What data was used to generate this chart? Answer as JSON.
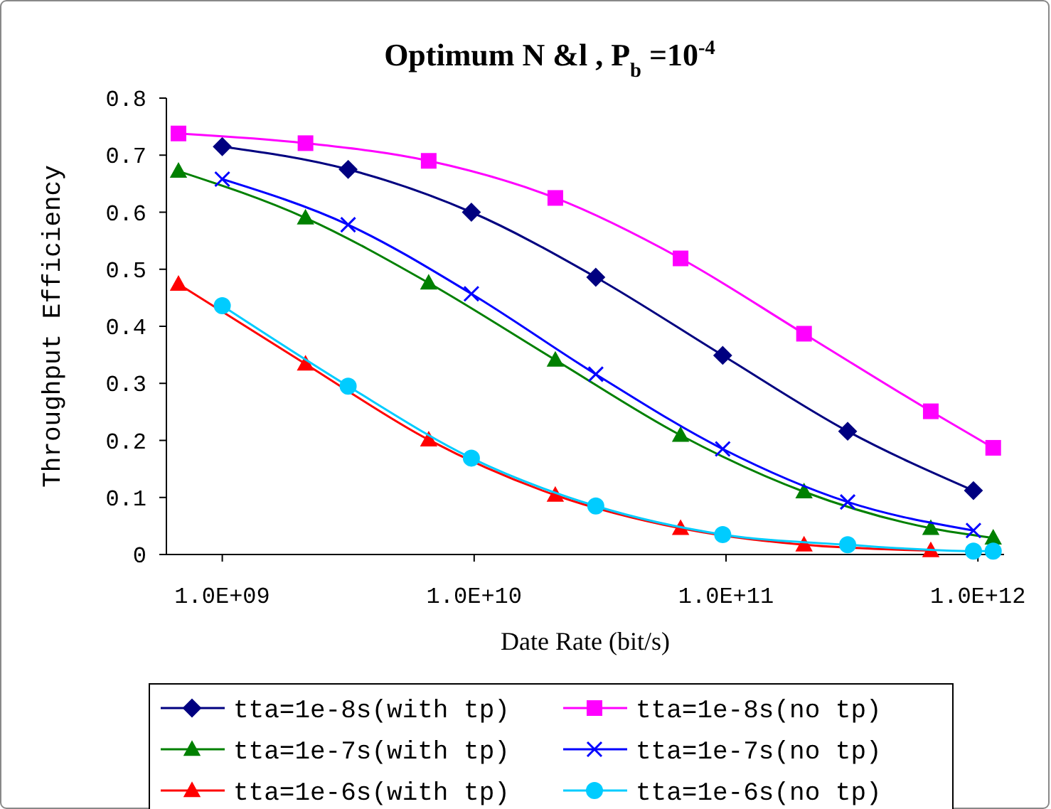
{
  "chart_data": {
    "type": "line",
    "title": "Optimum N &l , P$_{b}$ =10$^{-4}$",
    "xlabel": "Date Rate (bit/s)",
    "ylabel": "Throughput Efficiency",
    "log": "x",
    "xlim": [
      600000000.0,
      1270000000000.0
    ],
    "xticks": [
      {
        "value": 1000000000.0,
        "label": "1.0E+09"
      },
      {
        "value": 10000000000.0,
        "label": "1.0E+10"
      },
      {
        "value": 100000000000.0,
        "label": "1.0E+11"
      },
      {
        "value": 1000000000000.0,
        "label": "1.0E+12"
      }
    ],
    "ylim": [
      0,
      0.8
    ],
    "yticks": [
      0,
      0.1,
      0.2,
      0.3,
      0.4,
      0.5,
      0.6,
      0.7,
      0.8
    ],
    "grid": false,
    "legend": "bottom",
    "series": [
      {
        "name": "tta=1e-8s(with tp)",
        "color": "#000080",
        "marker": "diamond",
        "x": [
          1000000000.0,
          3160000000.0,
          9750000000.0,
          30400000000.0,
          97000000000.0,
          304000000000.0,
          960000000000.0
        ],
        "values": [
          0.715,
          0.675,
          0.6,
          0.486,
          0.349,
          0.216,
          0.112
        ]
      },
      {
        "name": "tta=1e-8s(no tp)",
        "color": "#ff00ff",
        "marker": "square",
        "x": [
          670000000.0,
          2140000000.0,
          6600000000.0,
          21000000000.0,
          66000000000.0,
          204000000000.0,
          650000000000.0,
          1150000000000.0
        ],
        "values": [
          0.738,
          0.721,
          0.69,
          0.625,
          0.519,
          0.387,
          0.251,
          0.187
        ]
      },
      {
        "name": "tta=1e-7s(with tp)",
        "color": "#008000",
        "marker": "triangle",
        "x": [
          670000000.0,
          2140000000.0,
          6600000000.0,
          21000000000.0,
          66000000000.0,
          204000000000.0,
          650000000000.0,
          1150000000000.0
        ],
        "values": [
          0.672,
          0.59,
          0.476,
          0.341,
          0.209,
          0.11,
          0.046,
          0.029
        ]
      },
      {
        "name": "tta=1e-7s(no tp)",
        "color": "#0000ff",
        "marker": "cross",
        "x": [
          1000000000.0,
          3160000000.0,
          9750000000.0,
          30400000000.0,
          97000000000.0,
          304000000000.0,
          960000000000.0
        ],
        "values": [
          0.658,
          0.578,
          0.457,
          0.316,
          0.185,
          0.092,
          0.042
        ]
      },
      {
        "name": "tta=1e-6s(with tp)",
        "color": "#ff0000",
        "marker": "triangle",
        "x": [
          670000000.0,
          2140000000.0,
          6600000000.0,
          21000000000.0,
          66000000000.0,
          204000000000.0,
          650000000000.0
        ],
        "values": [
          0.474,
          0.334,
          0.201,
          0.104,
          0.046,
          0.017,
          0.007
        ]
      },
      {
        "name": "tta=1e-6s(no tp)",
        "color": "#00ccff",
        "marker": "circle",
        "x": [
          1000000000.0,
          3160000000.0,
          9750000000.0,
          30400000000.0,
          97000000000.0,
          304000000000.0,
          960000000000.0,
          1150000000000.0
        ],
        "values": [
          0.436,
          0.295,
          0.169,
          0.085,
          0.035,
          0.017,
          0.006,
          0.006
        ]
      }
    ]
  }
}
